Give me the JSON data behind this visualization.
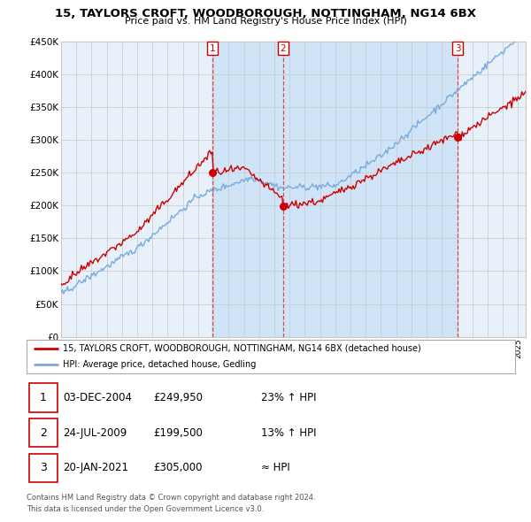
{
  "title": "15, TAYLORS CROFT, WOODBOROUGH, NOTTINGHAM, NG14 6BX",
  "subtitle": "Price paid vs. HM Land Registry's House Price Index (HPI)",
  "yticks": [
    0,
    50000,
    100000,
    150000,
    200000,
    250000,
    300000,
    350000,
    400000,
    450000
  ],
  "ytick_labels": [
    "£0",
    "£50K",
    "£100K",
    "£150K",
    "£200K",
    "£250K",
    "£300K",
    "£350K",
    "£400K",
    "£450K"
  ],
  "sale_year_vals": [
    2004.92,
    2009.56,
    2021.05
  ],
  "sale_prices": [
    249950,
    199500,
    305000
  ],
  "sale_labels": [
    "1",
    "2",
    "3"
  ],
  "sale_label_color": "#cc0000",
  "legend_line1": "15, TAYLORS CROFT, WOODBOROUGH, NOTTINGHAM, NG14 6BX (detached house)",
  "legend_line2": "HPI: Average price, detached house, Gedling",
  "table_rows": [
    [
      "1",
      "03-DEC-2004",
      "£249,950",
      "23% ↑ HPI"
    ],
    [
      "2",
      "24-JUL-2009",
      "£199,500",
      "13% ↑ HPI"
    ],
    [
      "3",
      "20-JAN-2021",
      "£305,000",
      "≈ HPI"
    ]
  ],
  "footer1": "Contains HM Land Registry data © Crown copyright and database right 2024.",
  "footer2": "This data is licensed under the Open Government Licence v3.0.",
  "hpi_color": "#7aaadd",
  "price_color": "#cc0000",
  "vline_color": "#dd4444",
  "shade_color": "#d0e4f7",
  "bg_color": "#e8f0fa",
  "grid_color": "#c8c8c8"
}
